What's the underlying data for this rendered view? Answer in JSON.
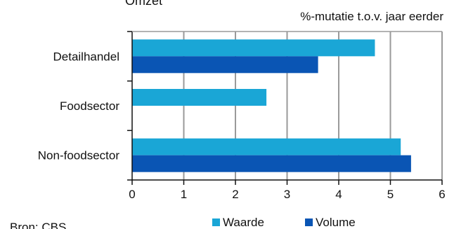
{
  "chart_data": {
    "type": "bar",
    "orientation": "horizontal",
    "title": "Omzet",
    "unit_label": "%-mutatie t.o.v. jaar eerder",
    "categories": [
      "Detailhandel",
      "Foodsector",
      "Non-foodsector"
    ],
    "series": [
      {
        "name": "Waarde",
        "color": "#1aa6d6",
        "values": [
          4.7,
          2.6,
          5.2
        ]
      },
      {
        "name": "Volume",
        "color": "#0a55b4",
        "values": [
          3.6,
          null,
          5.4
        ]
      }
    ],
    "xlim": [
      0,
      6
    ],
    "xticks": [
      "0",
      "1",
      "2",
      "3",
      "4",
      "5",
      "6"
    ],
    "grid": true,
    "legend": "bottom",
    "source": "Bron: CBS"
  }
}
